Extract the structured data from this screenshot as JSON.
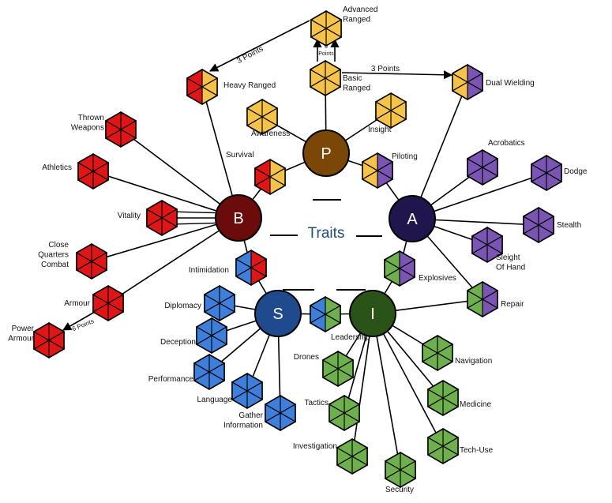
{
  "title": "Traits",
  "colors": {
    "P": "#7a4707",
    "B": "#6b0b0b",
    "A": "#20164d",
    "S": "#1f4a8e",
    "I": "#2a5417",
    "red": "#e01515",
    "yellow": "#f5c24a",
    "purple": "#7a55b3",
    "blue": "#3f7fdc",
    "green": "#6fb04e",
    "title": "#1f4e79"
  },
  "traits": {
    "P": {
      "letter": "P"
    },
    "B": {
      "letter": "B"
    },
    "A": {
      "letter": "A"
    },
    "S": {
      "letter": "S"
    },
    "I": {
      "letter": "I"
    }
  },
  "skills": {
    "advanced_ranged": {
      "line1": "Advanced",
      "line2": "Ranged",
      "colors": [
        "yellow"
      ]
    },
    "basic_ranged": {
      "line1": "Basic",
      "line2": "Ranged",
      "colors": [
        "yellow"
      ]
    },
    "heavy_ranged": {
      "line1": "Heavy Ranged",
      "colors": [
        "red",
        "yellow"
      ]
    },
    "dual_wielding": {
      "line1": "Dual Wielding",
      "colors": [
        "yellow",
        "purple"
      ]
    },
    "awareness": {
      "line1": "Awareness",
      "colors": [
        "yellow"
      ]
    },
    "insight": {
      "line1": "Insight",
      "colors": [
        "yellow"
      ]
    },
    "survival": {
      "line1": "Survival",
      "colors": [
        "red",
        "yellow"
      ]
    },
    "piloting": {
      "line1": "Piloting",
      "colors": [
        "yellow",
        "purple"
      ]
    },
    "thrown_weapons": {
      "line1": "Thrown",
      "line2": "Weapons",
      "colors": [
        "red"
      ]
    },
    "athletics": {
      "line1": "Athletics",
      "colors": [
        "red"
      ]
    },
    "vitality": {
      "line1": "Vitality",
      "colors": [
        "red"
      ]
    },
    "cqc": {
      "line1": "Close",
      "line2": "Quarters",
      "line3": "Combat",
      "colors": [
        "red"
      ]
    },
    "armour": {
      "line1": "Armour",
      "colors": [
        "red"
      ]
    },
    "power_armour": {
      "line1": "Power",
      "line2": "Armour",
      "colors": [
        "red"
      ]
    },
    "intimidation": {
      "line1": "Intimidation",
      "colors": [
        "blue",
        "red"
      ]
    },
    "acrobatics": {
      "line1": "Acrobatics",
      "colors": [
        "purple"
      ]
    },
    "dodge": {
      "line1": "Dodge",
      "colors": [
        "purple"
      ]
    },
    "stealth": {
      "line1": "Stealth",
      "colors": [
        "purple"
      ]
    },
    "sleight_of_hand": {
      "line1": "Sleight",
      "line2": "Of Hand",
      "colors": [
        "purple"
      ]
    },
    "explosives": {
      "line1": "Explosives",
      "colors": [
        "green",
        "purple"
      ]
    },
    "repair": {
      "line1": "Repair",
      "colors": [
        "green",
        "purple"
      ]
    },
    "diplomacy": {
      "line1": "Diplomacy",
      "colors": [
        "blue"
      ]
    },
    "deception": {
      "line1": "Deception",
      "colors": [
        "blue"
      ]
    },
    "performance": {
      "line1": "Performance",
      "colors": [
        "blue"
      ]
    },
    "language": {
      "line1": "Language",
      "colors": [
        "blue"
      ]
    },
    "gather_information": {
      "line1": "Gather",
      "line2": "Information",
      "colors": [
        "blue"
      ]
    },
    "leadership": {
      "line1": "Leadership",
      "colors": [
        "blue",
        "green"
      ]
    },
    "drones": {
      "line1": "Drones",
      "colors": [
        "green"
      ]
    },
    "tactics": {
      "line1": "Tactics",
      "colors": [
        "green"
      ]
    },
    "investigation": {
      "line1": "Investigation",
      "colors": [
        "green"
      ]
    },
    "security": {
      "line1": "Security",
      "colors": [
        "green"
      ]
    },
    "tech_use": {
      "line1": "Tech-Use",
      "colors": [
        "green"
      ]
    },
    "medicine": {
      "line1": "Medicine",
      "colors": [
        "green"
      ]
    },
    "navigation": {
      "line1": "Navigation",
      "colors": [
        "green"
      ]
    }
  },
  "costs": {
    "adv_to_heavy": "3 Points",
    "basic_to_dual": "3 Points",
    "basic_to_adv": {
      "line1": "6",
      "line2": "Points"
    },
    "armour_to_power": "6 Points"
  }
}
